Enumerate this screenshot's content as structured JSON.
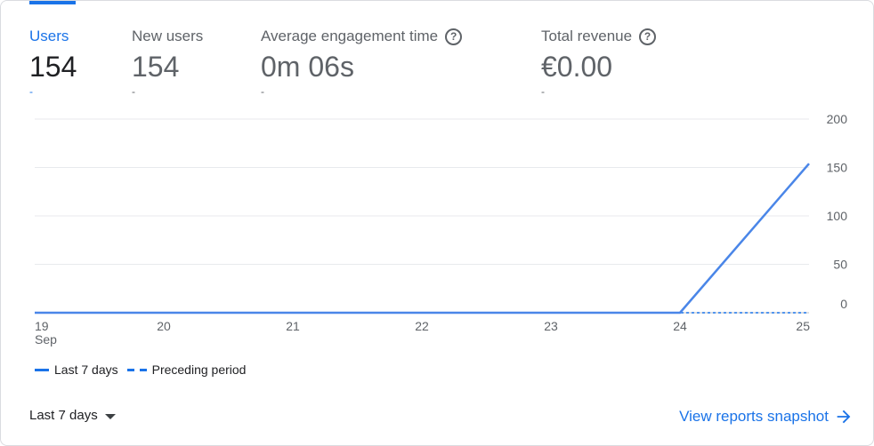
{
  "tabs": [
    {
      "label": "Users",
      "value": "154",
      "compare": "-",
      "active": true,
      "has_help": false
    },
    {
      "label": "New users",
      "value": "154",
      "compare": "-",
      "active": false,
      "has_help": false
    },
    {
      "label": "Average engagement time",
      "value": "0m 06s",
      "compare": "-",
      "active": false,
      "has_help": true
    },
    {
      "label": "Total revenue",
      "value": "€0.00",
      "compare": "-",
      "active": false,
      "has_help": true
    }
  ],
  "icons": {
    "help": "help-circle-icon",
    "dropdown": "caret-down-icon",
    "link_arrow": "arrow-right-icon"
  },
  "chart_data": {
    "type": "line",
    "categories": [
      "19",
      "20",
      "21",
      "22",
      "23",
      "24",
      "25"
    ],
    "x_sublabel": "Sep",
    "y_ticks": [
      "200",
      "150",
      "100",
      "50",
      "0"
    ],
    "ylim": [
      0,
      200
    ],
    "grid": true,
    "legend_position": "bottom-left",
    "series": [
      {
        "name": "Last 7 days",
        "style": "solid",
        "color": "#4a86e8",
        "values": [
          0,
          0,
          0,
          0,
          0,
          0,
          154
        ]
      },
      {
        "name": "Preceding period",
        "style": "dashed",
        "color": "#1a73e8",
        "values": [
          0,
          0,
          0,
          0,
          0,
          0,
          0
        ]
      }
    ]
  },
  "legend": {
    "current": "Last 7 days",
    "previous": "Preceding period"
  },
  "footer": {
    "range_label": "Last 7 days",
    "link_label": "View reports snapshot"
  }
}
